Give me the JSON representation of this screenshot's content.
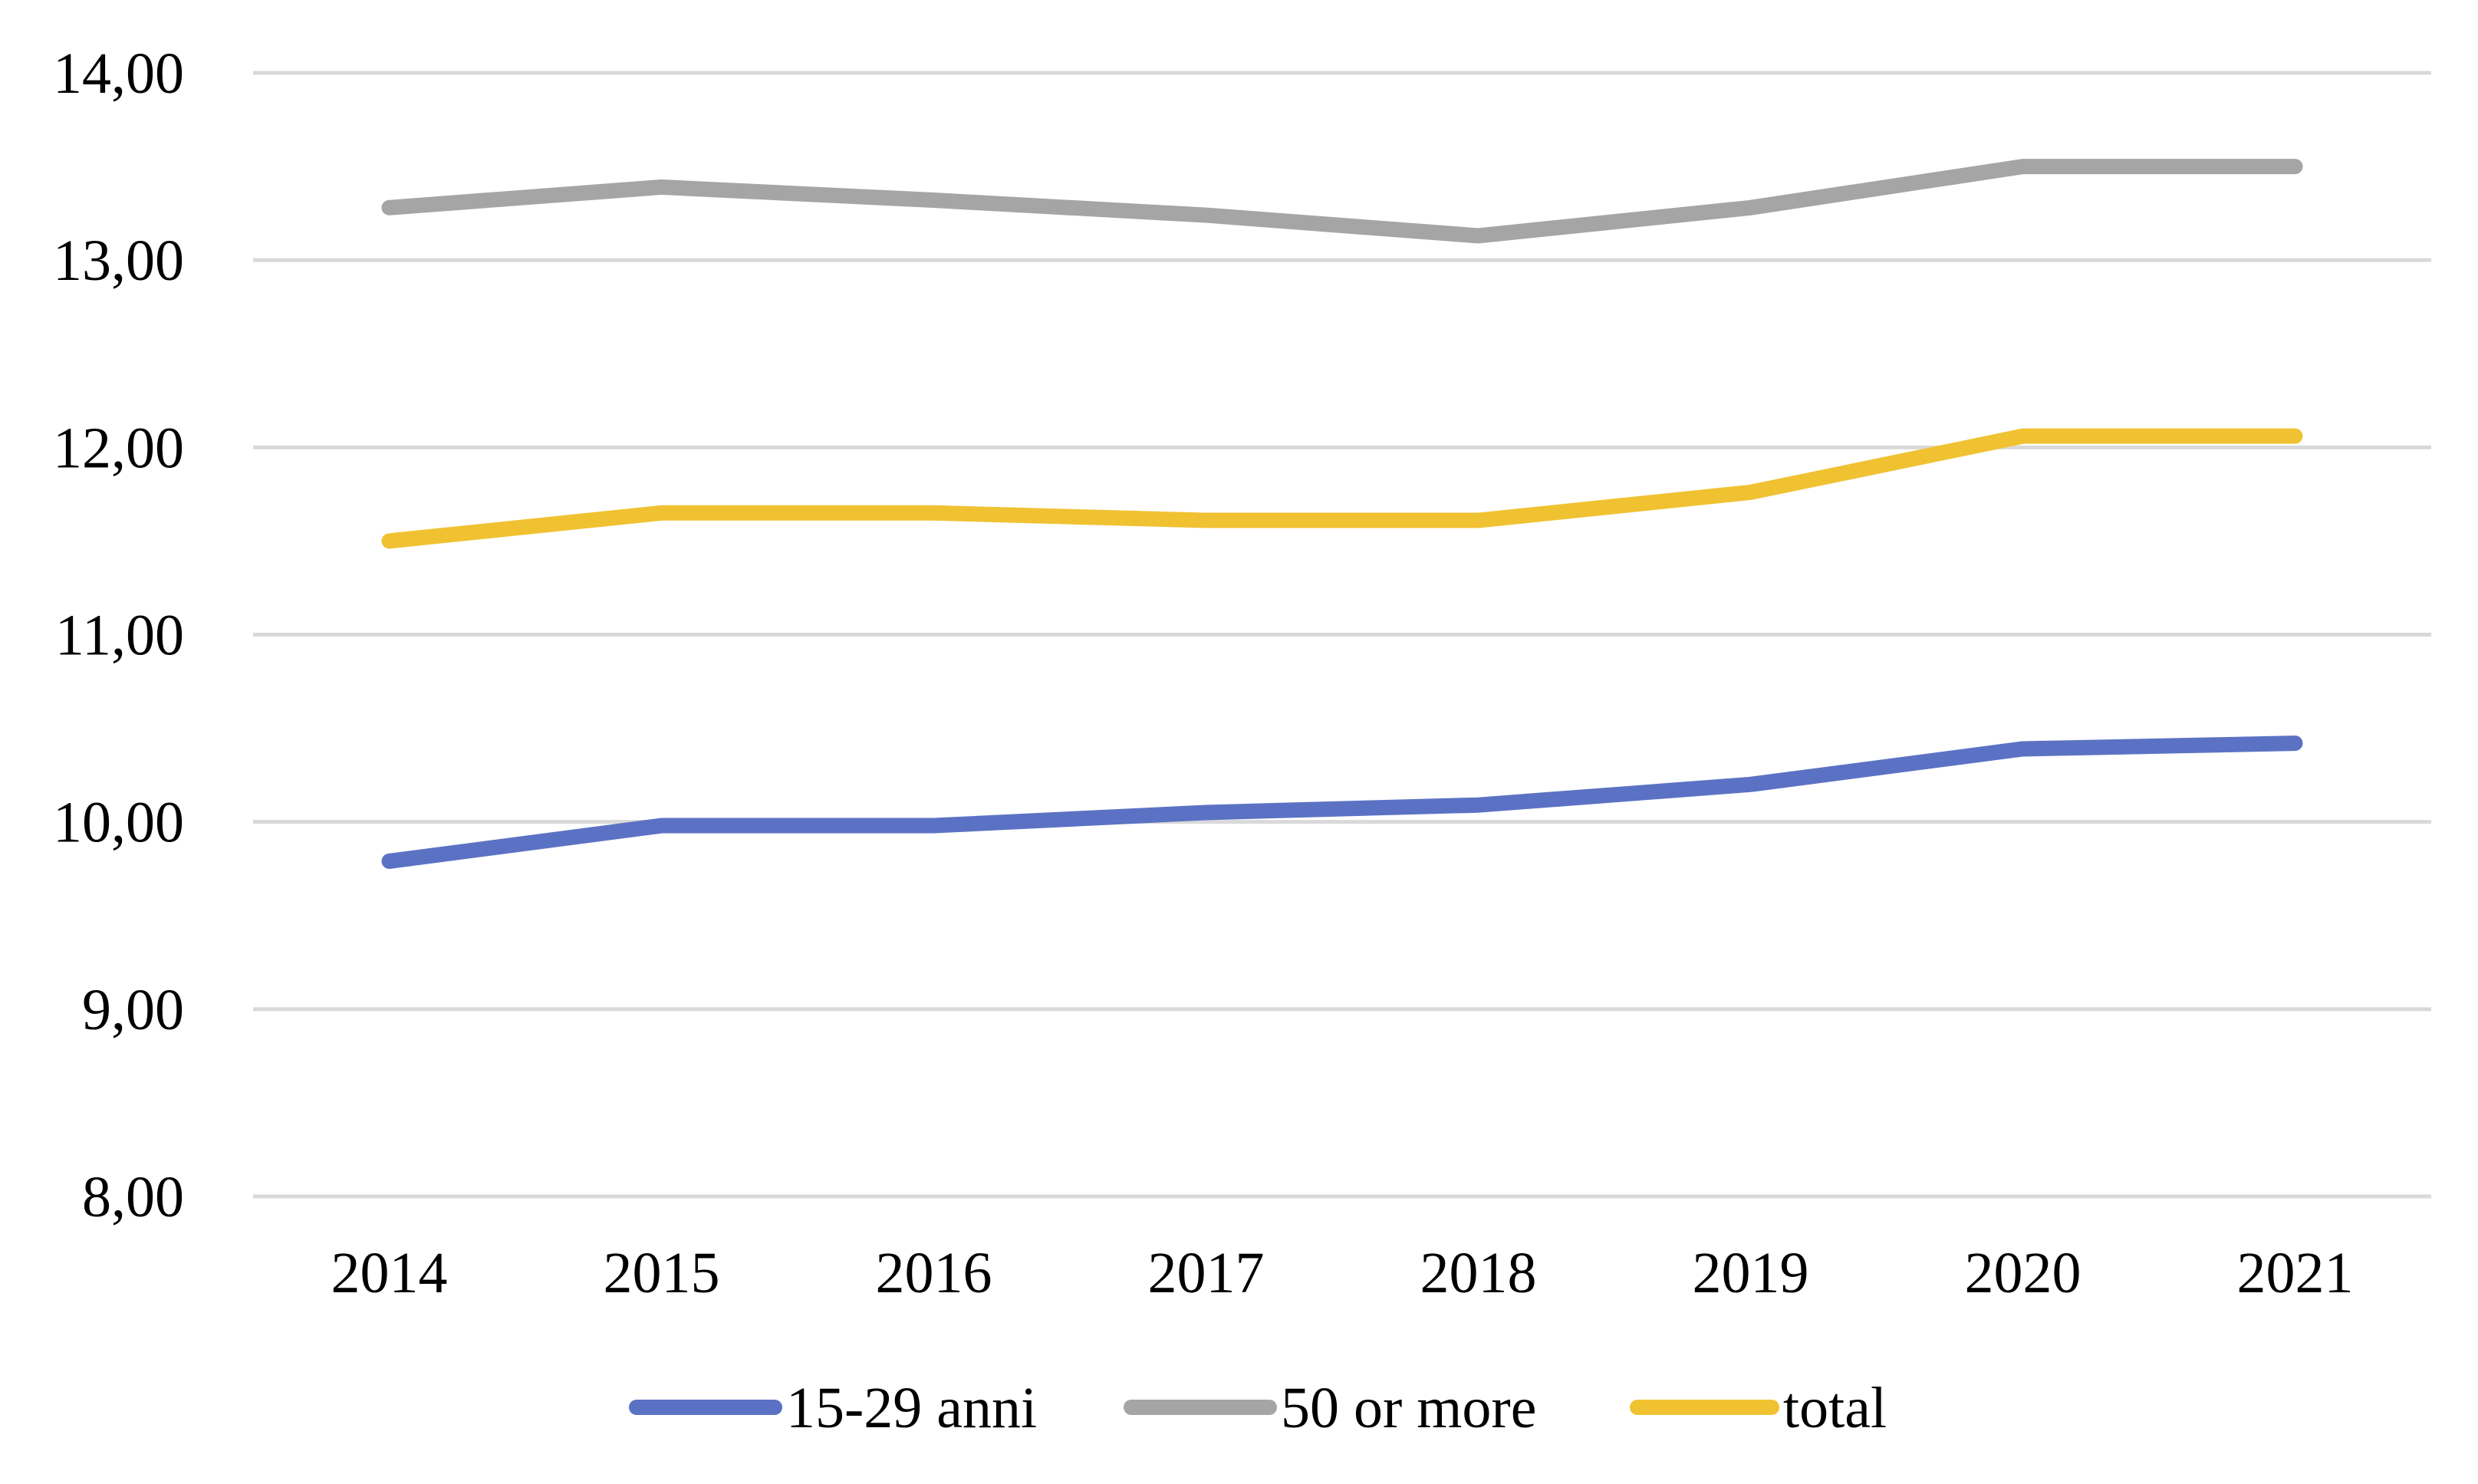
{
  "chart_data": {
    "type": "line",
    "x": [
      "2014",
      "2015",
      "2016",
      "2017",
      "2018",
      "2019",
      "2020",
      "2021"
    ],
    "series": [
      {
        "name": "15-29 anni",
        "color": "#5B72C4",
        "values": [
          9.79,
          9.98,
          9.98,
          10.05,
          10.09,
          10.2,
          10.39,
          10.42
        ]
      },
      {
        "name": "50 or more",
        "color": "#A5A5A5",
        "values": [
          13.28,
          13.39,
          13.32,
          13.24,
          13.13,
          13.28,
          13.5,
          13.5
        ]
      },
      {
        "name": "total",
        "color": "#F0C232",
        "values": [
          11.5,
          11.65,
          11.65,
          11.61,
          11.61,
          11.76,
          12.06,
          12.06
        ]
      }
    ],
    "ylim": [
      8,
      14
    ],
    "yticks": [
      "8,00",
      "9,00",
      "10,00",
      "11,00",
      "12,00",
      "13,00",
      "14,00"
    ],
    "grid": true,
    "legend": "bottom",
    "title": "",
    "xlabel": "",
    "ylabel": ""
  }
}
